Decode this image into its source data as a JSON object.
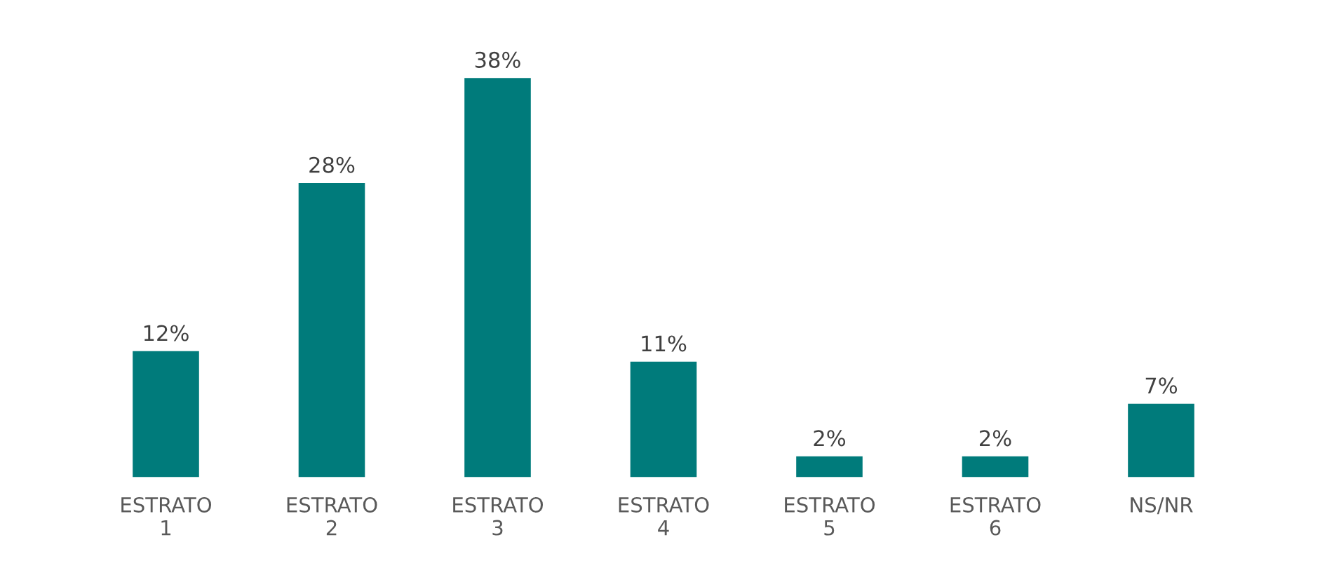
{
  "chart_data": {
    "type": "bar",
    "categories": [
      "ESTRATO\n1",
      "ESTRATO\n2",
      "ESTRATO\n3",
      "ESTRATO\n4",
      "ESTRATO\n5",
      "ESTRATO\n6",
      "NS/NR"
    ],
    "values": [
      12,
      28,
      38,
      11,
      2,
      2,
      7
    ],
    "value_labels": [
      "12%",
      "28%",
      "38%",
      "11%",
      "2%",
      "2%",
      "7%"
    ],
    "color": "#007b7b",
    "grid": false,
    "legend": false,
    "tick_labels": "x"
  }
}
